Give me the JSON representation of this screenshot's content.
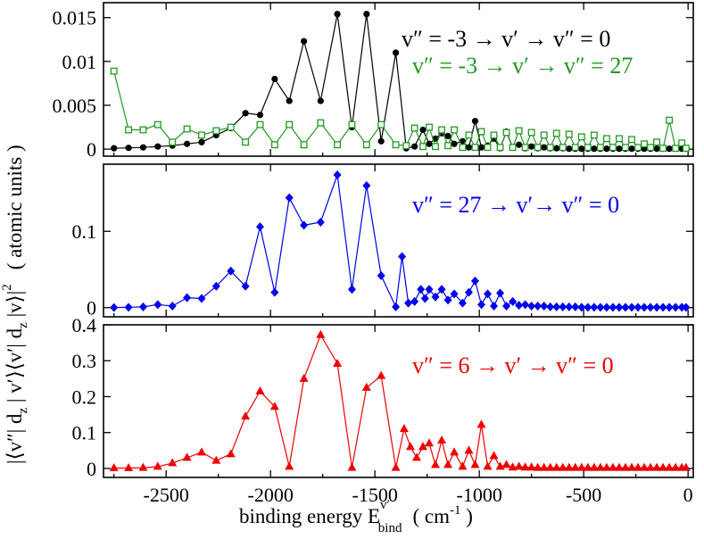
{
  "chart_data": [
    {
      "type": "line",
      "panel": "top",
      "ylim": [
        -0.0008,
        0.0167
      ],
      "yticks": [
        0,
        0.005,
        0.01,
        0.015
      ],
      "ytick_labels": [
        "0",
        "0.005",
        "0.01",
        "0.015"
      ],
      "legend_position": "top-right",
      "series": [
        {
          "name": "v″ = -3  →  v′  →  v″ = 0",
          "color": "#000000",
          "marker": "circle",
          "x": [
            -2750,
            -2680,
            -2610,
            -2540,
            -2470,
            -2400,
            -2330,
            -2260,
            -2190,
            -2120,
            -2050,
            -1980,
            -1910,
            -1840,
            -1760,
            -1680,
            -1610,
            -1540,
            -1470,
            -1400,
            -1350,
            -1310,
            -1270,
            -1240,
            -1210,
            -1180,
            -1150,
            -1120,
            -1080,
            -1050,
            -1020,
            -990,
            -960,
            -930,
            -900,
            -870,
            -840,
            -810,
            -780,
            -750,
            -720,
            -690,
            -660,
            -630,
            -600,
            -570,
            -540,
            -510,
            -480,
            -450,
            -420,
            -390,
            -360,
            -330,
            -300,
            -270,
            -240,
            -210,
            -180,
            -150,
            -120,
            -90,
            -60,
            -30,
            -10
          ],
          "y": [
            0.0001,
            0.00015,
            0.0002,
            0.0003,
            0.0004,
            0.0006,
            0.0008,
            0.0016,
            0.0024,
            0.0041,
            0.0039,
            0.008,
            0.0055,
            0.0123,
            0.0055,
            0.0154,
            0.0025,
            0.0154,
            0.0009,
            0.011,
            0.0001,
            0.0003,
            0.0022,
            0.0006,
            0.0012,
            0.0018,
            0.0015,
            0.0006,
            0.0009,
            0.0002,
            0.0032,
            0.0002,
            0.0004,
            0.0012,
            0.0001,
            0.002,
            0.0002,
            0.0005,
            0.0001,
            0.0003,
            0.0001,
            0.0002,
            0.0001,
            0.0001,
            0.0001,
            5e-05,
            5e-05,
            5e-05,
            5e-05,
            5e-05,
            5e-05,
            5e-05,
            5e-05,
            5e-05,
            5e-05,
            5e-05,
            5e-05,
            5e-05,
            5e-05,
            5e-05,
            5e-05,
            5e-05,
            5e-05,
            5e-05,
            5e-05
          ]
        },
        {
          "name": "v″ = -3  →  v′  →  v″ = 27",
          "color": "#229922",
          "marker": "open-square",
          "x": [
            -2750,
            -2680,
            -2610,
            -2540,
            -2470,
            -2400,
            -2330,
            -2260,
            -2190,
            -2120,
            -2050,
            -1980,
            -1910,
            -1840,
            -1760,
            -1680,
            -1610,
            -1540,
            -1470,
            -1400,
            -1350,
            -1310,
            -1270,
            -1240,
            -1210,
            -1180,
            -1150,
            -1120,
            -1080,
            -1050,
            -1020,
            -990,
            -960,
            -930,
            -900,
            -870,
            -840,
            -810,
            -780,
            -750,
            -720,
            -690,
            -660,
            -630,
            -600,
            -570,
            -540,
            -510,
            -480,
            -450,
            -420,
            -390,
            -360,
            -330,
            -300,
            -270,
            -240,
            -210,
            -180,
            -150,
            -120,
            -90,
            -60,
            -30,
            -10
          ],
          "y": [
            0.0089,
            0.0022,
            0.0022,
            0.0028,
            0.0008,
            0.0023,
            0.0016,
            0.0021,
            0.0025,
            0.0008,
            0.0028,
            0.0005,
            0.0028,
            0.0005,
            0.003,
            0.0005,
            0.0028,
            0.0005,
            0.0028,
            0.0005,
            0.0004,
            0.0024,
            0.0003,
            0.0025,
            0.0003,
            0.0022,
            0.0004,
            0.0022,
            0.0002,
            0.0016,
            0.0002,
            0.002,
            0.0002,
            0.0016,
            0.0002,
            0.0019,
            0.0002,
            0.0021,
            0.0002,
            0.0019,
            0.0002,
            0.0016,
            0.0002,
            0.0018,
            0.0002,
            0.0017,
            0.0002,
            0.0014,
            0.0002,
            0.0016,
            0.0002,
            0.0012,
            0.0002,
            0.0012,
            0.0002,
            0.0011,
            0.0002,
            0.0006,
            0.0002,
            0.0008,
            0.0001,
            0.0033,
            0.0001,
            0.0007,
            0.0001
          ]
        }
      ]
    },
    {
      "type": "line",
      "panel": "middle",
      "ylim": [
        -0.012,
        0.188
      ],
      "yticks": [
        0,
        0.1
      ],
      "ytick_labels": [
        "0",
        "0.1"
      ],
      "legend_position": "top-right",
      "series": [
        {
          "name": "v″ = 27  →  v′→  v″ = 0",
          "color": "#0000ee",
          "marker": "diamond",
          "x": [
            -2750,
            -2680,
            -2610,
            -2540,
            -2470,
            -2400,
            -2330,
            -2260,
            -2190,
            -2120,
            -2050,
            -1980,
            -1910,
            -1840,
            -1760,
            -1680,
            -1610,
            -1540,
            -1470,
            -1400,
            -1370,
            -1340,
            -1310,
            -1280,
            -1260,
            -1240,
            -1210,
            -1180,
            -1150,
            -1120,
            -1080,
            -1050,
            -1020,
            -990,
            -960,
            -930,
            -900,
            -870,
            -840,
            -810,
            -780,
            -750,
            -720,
            -690,
            -660,
            -630,
            -600,
            -570,
            -540,
            -510,
            -480,
            -450,
            -420,
            -390,
            -360,
            -330,
            -300,
            -270,
            -240,
            -210,
            -180,
            -150,
            -120,
            -90,
            -60,
            -30,
            -10
          ],
          "y": [
            0.0002,
            0.0005,
            0.001,
            0.004,
            0.002,
            0.013,
            0.012,
            0.028,
            0.048,
            0.028,
            0.106,
            0.02,
            0.144,
            0.108,
            0.112,
            0.174,
            0.024,
            0.16,
            0.042,
            0.001,
            0.067,
            0.006,
            0.008,
            0.024,
            0.012,
            0.024,
            0.014,
            0.024,
            0.01,
            0.018,
            0.006,
            0.02,
            0.035,
            0.004,
            0.018,
            0.002,
            0.019,
            0.002,
            0.008,
            0.003,
            0.004,
            0.002,
            0.002,
            0.002,
            0.001,
            0.001,
            0.001,
            0.001,
            0.001,
            0.0005,
            0.0005,
            0.0005,
            0.0005,
            0.0005,
            0.0005,
            0.0005,
            0.0005,
            0.0005,
            0.0005,
            0.0005,
            0.0005,
            0.0005,
            0.0005,
            0.0005,
            0.0005,
            0.0005,
            0.0005
          ]
        }
      ]
    },
    {
      "type": "line",
      "panel": "bottom",
      "ylim": [
        -0.025,
        0.4
      ],
      "yticks": [
        0,
        0.1,
        0.2,
        0.3,
        0.4
      ],
      "ytick_labels": [
        "0",
        "0.1",
        "0.2",
        "0.3",
        "0.4"
      ],
      "legend_position": "top-right",
      "series": [
        {
          "name": "v″ = 6  →  v′  →  v″ = 0",
          "color": "#ee0000",
          "marker": "triangle",
          "x": [
            -2750,
            -2680,
            -2610,
            -2540,
            -2470,
            -2400,
            -2330,
            -2260,
            -2190,
            -2120,
            -2050,
            -1980,
            -1910,
            -1840,
            -1760,
            -1680,
            -1610,
            -1540,
            -1470,
            -1400,
            -1360,
            -1330,
            -1300,
            -1270,
            -1240,
            -1210,
            -1180,
            -1150,
            -1120,
            -1080,
            -1050,
            -1020,
            -990,
            -960,
            -930,
            -900,
            -870,
            -840,
            -810,
            -780,
            -750,
            -720,
            -690,
            -660,
            -630,
            -600,
            -570,
            -540,
            -510,
            -480,
            -450,
            -420,
            -390,
            -360,
            -330,
            -300,
            -270,
            -240,
            -210,
            -180,
            -150,
            -120,
            -90,
            -60,
            -30,
            -10
          ],
          "y": [
            0.001,
            0.001,
            0.002,
            0.005,
            0.015,
            0.03,
            0.045,
            0.022,
            0.04,
            0.145,
            0.215,
            0.172,
            0.005,
            0.25,
            0.372,
            0.292,
            0.002,
            0.225,
            0.258,
            0.002,
            0.11,
            0.06,
            0.03,
            0.06,
            0.07,
            0.01,
            0.078,
            0.01,
            0.045,
            0.005,
            0.05,
            0.01,
            0.122,
            0.005,
            0.035,
            0.005,
            0.01,
            0.003,
            0.005,
            0.003,
            0.003,
            0.002,
            0.002,
            0.002,
            0.002,
            0.002,
            0.002,
            0.002,
            0.002,
            0.002,
            0.002,
            0.002,
            0.002,
            0.002,
            0.002,
            0.002,
            0.002,
            0.002,
            0.002,
            0.002,
            0.002,
            0.002,
            0.002,
            0.002,
            0.002,
            0.002
          ]
        }
      ]
    }
  ],
  "x_axis": {
    "xlim": [
      -2800,
      25
    ],
    "ticks": [
      -2500,
      -2000,
      -1500,
      -1000,
      -500,
      0
    ],
    "tick_labels": [
      "-2500",
      "-2000",
      "-1500",
      "-1000",
      "-500",
      "0"
    ],
    "label_main": "binding energy  E",
    "label_sup": "v′",
    "label_sub": "bind",
    "label_units_open": "(  cm",
    "label_units_exp": "-1",
    "label_units_close": " )"
  },
  "y_axis": {
    "label_expression": "|⟨v″| d",
    "label_sub_z": "z",
    "label_expression_2": " | v′⟩⟨v′| d",
    "label_expression_3": " |v⟩|",
    "label_power": "2",
    "units": "( atomic units )"
  }
}
